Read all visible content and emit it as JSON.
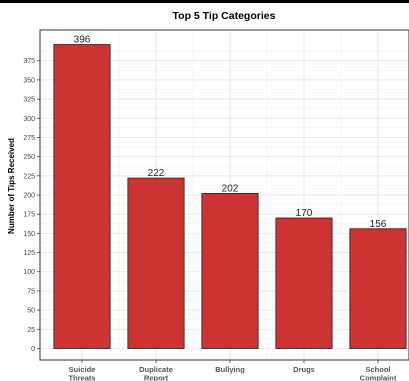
{
  "chart_data": {
    "type": "bar",
    "title": "Top 5 Tip Categories",
    "xlabel": "",
    "ylabel": "Number of Tips Received",
    "categories": [
      [
        "Suicide",
        "Threats"
      ],
      [
        "Duplicate",
        "Report"
      ],
      [
        "Bullying"
      ],
      [
        "Drugs"
      ],
      [
        "School",
        "Complaint"
      ]
    ],
    "values": [
      396,
      222,
      202,
      170,
      156
    ],
    "data_labels": [
      "396",
      "222",
      "202",
      "170",
      "156"
    ],
    "ylim": [
      -15,
      415
    ],
    "yticks": [
      0,
      25,
      50,
      75,
      100,
      125,
      150,
      175,
      200,
      225,
      250,
      275,
      300,
      325,
      350,
      375
    ],
    "grid": true,
    "legend": "none",
    "bar_color": "#cc3333",
    "bar_outline": "#2b2b2b",
    "panel_border": "#333333",
    "grid_major": "#e3e3e3",
    "grid_minor": "#f1f1f1",
    "text_color": "#222222"
  }
}
